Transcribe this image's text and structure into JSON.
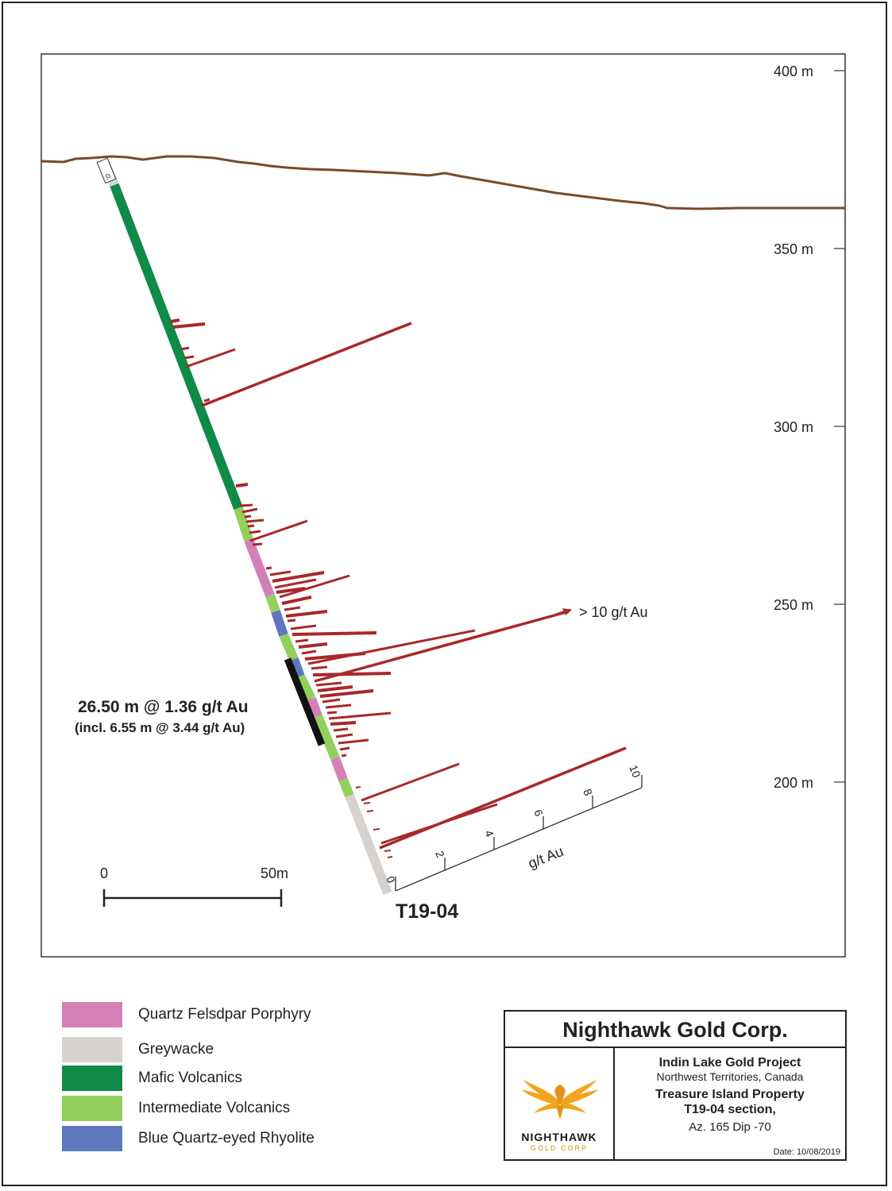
{
  "elevation_labels": [
    "400 m",
    "350 m",
    "300 m",
    "250 m",
    "200 m"
  ],
  "hole": {
    "id": "T19-04",
    "collar_label": "-0"
  },
  "annotations": {
    "high_grade": "> 10 g/t Au",
    "intercept_main": "26.50 m @ 1.36 g/t Au",
    "intercept_incl": "(incl. 6.55 m @ 3.44 g/t Au)"
  },
  "grade_axis": {
    "title": "g/t Au",
    "ticks": [
      "0",
      "2",
      "4",
      "6",
      "8",
      "10"
    ]
  },
  "scale_bar": {
    "start_label": "0",
    "end_label": "50m"
  },
  "legend": [
    {
      "label": "Quartz Felsdpar Porphyry",
      "color": "#d57fb7"
    },
    {
      "label": "Greywacke",
      "color": "#d6d2cf"
    },
    {
      "label": "Mafic Volcanics",
      "color": "#0f8a48"
    },
    {
      "label": "Intermediate Volcanics",
      "color": "#92cf5c"
    },
    {
      "label": "Blue Quartz-eyed Rhyolite",
      "color": "#5e78be"
    }
  ],
  "title_block": {
    "company": "Nighthawk Gold Corp.",
    "logo_word": "NIGHTHAWK",
    "logo_sub": "GOLD CORP",
    "project": "Indin Lake Gold Project",
    "region": "Northwest Territories, Canada",
    "property": "Treasure Island Property",
    "section": "T19-04 section,",
    "azimuth_dip": "Az. 165  Dip -70",
    "date": "Date: 10/08/2019"
  },
  "colors": {
    "topography": "#7a4a2a",
    "assay_bar": "#a8282a",
    "intercept_bar": "#111111"
  }
}
